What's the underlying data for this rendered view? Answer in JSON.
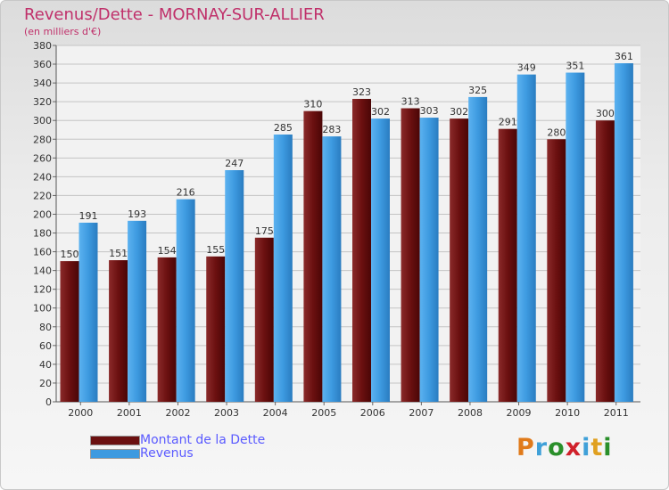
{
  "chart_data": {
    "type": "bar",
    "title": "Revenus/Dette - MORNAY-SUR-ALLIER",
    "subtitle": "(en milliers d'€)",
    "categories": [
      "2000",
      "2001",
      "2002",
      "2003",
      "2004",
      "2005",
      "2006",
      "2007",
      "2008",
      "2009",
      "2010",
      "2011"
    ],
    "series": [
      {
        "name": "Montant de la Dette",
        "color": "#6b1010",
        "values": [
          150,
          151,
          154,
          155,
          175,
          310,
          323,
          313,
          302,
          291,
          280,
          300
        ]
      },
      {
        "name": "Revenus",
        "color": "#3d9ae0",
        "values": [
          191,
          193,
          216,
          247,
          285,
          283,
          302,
          303,
          325,
          349,
          351,
          361
        ]
      }
    ],
    "ylim": [
      0,
      380
    ],
    "yticks": [
      0,
      20,
      40,
      60,
      80,
      100,
      120,
      140,
      160,
      180,
      200,
      220,
      240,
      260,
      280,
      300,
      320,
      340,
      360,
      380
    ],
    "grid": true,
    "legend_position": "bottom-left"
  },
  "logo": {
    "text": "Proxiti",
    "letters": [
      "P",
      "r",
      "o",
      "x",
      "i",
      "t",
      "i"
    ],
    "colors": [
      "#e07a1a",
      "#3fa0d8",
      "#2a8f2a",
      "#d0202a",
      "#3fa0d8",
      "#e0a020",
      "#2a8f2a"
    ]
  }
}
